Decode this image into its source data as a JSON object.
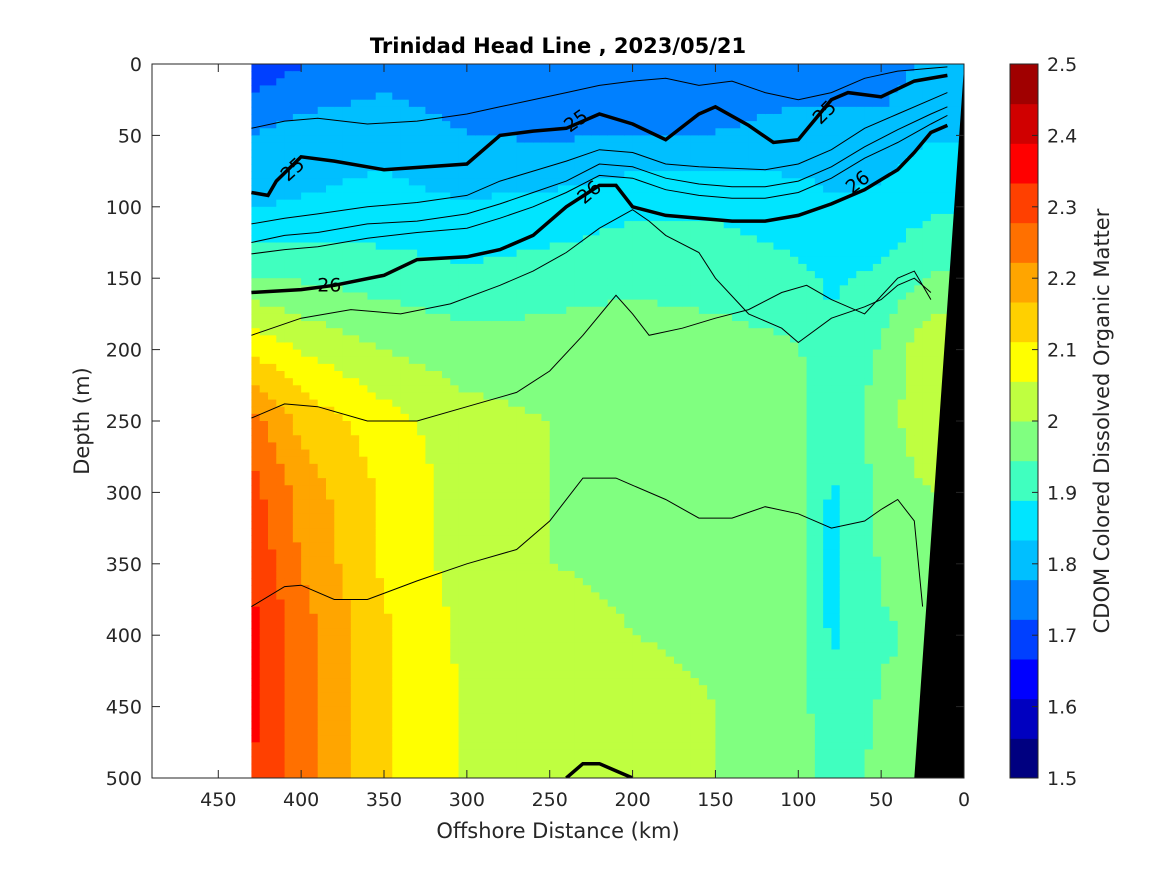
{
  "chart_data": {
    "type": "heatmap",
    "title": "Trinidad Head Line , 2023/05/21",
    "xlabel": "Offshore Distance (km)",
    "ylabel": "Depth (m)",
    "colorbar_label": "CDOM Colored Dissolved Organic Matter",
    "xlim": [
      490,
      0
    ],
    "ylim": [
      500,
      0
    ],
    "x_reversed": true,
    "y_reversed": true,
    "x_ticks": [
      "450",
      "400",
      "350",
      "300",
      "250",
      "200",
      "150",
      "100",
      "50",
      "0"
    ],
    "y_ticks": [
      "0",
      "50",
      "100",
      "150",
      "200",
      "250",
      "300",
      "350",
      "400",
      "450",
      "500"
    ],
    "colorbar": {
      "min": 1.5,
      "max": 2.5,
      "ticks": [
        "1.5",
        "1.6",
        "1.7",
        "1.8",
        "1.9",
        "2",
        "2.1",
        "2.2",
        "2.3",
        "2.4",
        "2.5"
      ],
      "colors": [
        "#000080",
        "#0000c0",
        "#0000ff",
        "#0040ff",
        "#0080ff",
        "#00bfff",
        "#00e5ff",
        "#40ffbf",
        "#80ff80",
        "#bfff40",
        "#ffff00",
        "#ffd000",
        "#ffa500",
        "#ff7000",
        "#ff4000",
        "#ff0000",
        "#d00000",
        "#a00000"
      ]
    },
    "data_x_range_km": [
      430,
      0
    ],
    "cdom_profile": {
      "description_free": true,
      "x_km": [
        430,
        400,
        350,
        300,
        250,
        200,
        150,
        100,
        80,
        50,
        20
      ],
      "depth_m": [
        0,
        50,
        100,
        150,
        200,
        250,
        300,
        350,
        400,
        450,
        500
      ],
      "values": [
        [
          1.68,
          1.72,
          1.75,
          1.72,
          1.72,
          1.72,
          1.73,
          1.75,
          1.75,
          1.74,
          1.8
        ],
        [
          1.78,
          1.8,
          1.82,
          1.78,
          1.77,
          1.78,
          1.78,
          1.8,
          1.8,
          1.8,
          1.83
        ],
        [
          1.83,
          1.84,
          1.85,
          1.84,
          1.85,
          1.88,
          1.88,
          1.86,
          1.84,
          1.85,
          1.88
        ],
        [
          1.95,
          1.94,
          1.92,
          1.9,
          1.92,
          1.93,
          1.92,
          1.9,
          1.88,
          1.9,
          1.95
        ],
        [
          2.1,
          2.05,
          2.0,
          1.97,
          1.97,
          1.98,
          1.97,
          1.95,
          1.9,
          1.95,
          2.05
        ],
        [
          2.25,
          2.15,
          2.08,
          2.02,
          2.0,
          1.98,
          1.98,
          1.96,
          1.9,
          1.97,
          2.05
        ],
        [
          2.3,
          2.2,
          2.1,
          2.03,
          2.0,
          1.98,
          1.98,
          1.96,
          1.88,
          1.96,
          2.0
        ],
        [
          2.33,
          2.22,
          2.1,
          2.03,
          2.0,
          1.99,
          1.98,
          1.96,
          1.87,
          1.95,
          1.96
        ],
        [
          2.35,
          2.25,
          2.12,
          2.04,
          2.02,
          2.0,
          1.99,
          1.96,
          1.88,
          1.94,
          1.95
        ],
        [
          2.35,
          2.25,
          2.12,
          2.05,
          2.03,
          2.02,
          2.0,
          1.97,
          1.9,
          1.95,
          1.95
        ],
        [
          2.33,
          2.25,
          2.12,
          2.05,
          2.04,
          2.04,
          2.0,
          1.97,
          1.92,
          1.96,
          1.96
        ]
      ]
    },
    "density_contours": {
      "labeled": [
        {
          "level": "25",
          "x_km": [
            430,
            420,
            415,
            400,
            380,
            350,
            300,
            280,
            260,
            240,
            220,
            200,
            180,
            160,
            150,
            130,
            115,
            100,
            80,
            70,
            50,
            30,
            10
          ],
          "depth_m": [
            90,
            92,
            82,
            65,
            68,
            74,
            70,
            50,
            47,
            45,
            35,
            42,
            53,
            35,
            30,
            43,
            55,
            53,
            25,
            20,
            23,
            12,
            8
          ]
        },
        {
          "level": "26",
          "x_km": [
            430,
            400,
            380,
            350,
            330,
            300,
            280,
            260,
            240,
            220,
            210,
            200,
            180,
            160,
            140,
            120,
            100,
            80,
            60,
            40,
            30,
            20,
            10
          ],
          "depth_m": [
            160,
            158,
            155,
            148,
            137,
            135,
            130,
            120,
            100,
            85,
            85,
            100,
            106,
            108,
            110,
            110,
            106,
            98,
            88,
            74,
            62,
            48,
            43
          ]
        },
        {
          "level": "",
          "x_km": [
            240,
            230,
            220,
            210,
            200
          ],
          "depth_m": [
            500,
            490,
            490,
            495,
            500
          ]
        }
      ],
      "thin": [
        {
          "x_km": [
            430,
            410,
            390,
            360,
            330,
            300,
            280,
            260,
            240,
            220,
            200,
            180,
            160,
            140,
            120,
            100,
            80,
            60,
            40,
            20,
            10
          ],
          "depth_m": [
            45,
            40,
            38,
            42,
            40,
            35,
            30,
            25,
            20,
            15,
            12,
            10,
            15,
            12,
            20,
            25,
            20,
            10,
            5,
            3,
            2
          ]
        },
        {
          "x_km": [
            430,
            410,
            390,
            360,
            330,
            300,
            280,
            260,
            240,
            220,
            200,
            180,
            160,
            140,
            120,
            100,
            80,
            60,
            40,
            20,
            10
          ],
          "depth_m": [
            112,
            108,
            105,
            100,
            97,
            92,
            82,
            75,
            68,
            60,
            62,
            70,
            72,
            73,
            74,
            70,
            60,
            45,
            35,
            25,
            20
          ]
        },
        {
          "x_km": [
            430,
            410,
            390,
            360,
            330,
            300,
            280,
            260,
            240,
            220,
            200,
            180,
            160,
            140,
            120,
            100,
            80,
            60,
            40,
            20,
            10
          ],
          "depth_m": [
            125,
            120,
            118,
            112,
            110,
            105,
            98,
            90,
            82,
            70,
            72,
            80,
            84,
            86,
            86,
            82,
            72,
            58,
            46,
            35,
            30
          ]
        },
        {
          "x_km": [
            430,
            410,
            390,
            360,
            330,
            300,
            280,
            260,
            240,
            220,
            200,
            180,
            160,
            140,
            120,
            100,
            80,
            60,
            40,
            20,
            10
          ],
          "depth_m": [
            133,
            130,
            128,
            122,
            118,
            115,
            108,
            100,
            90,
            78,
            80,
            88,
            92,
            94,
            94,
            90,
            80,
            66,
            55,
            42,
            36
          ]
        },
        {
          "x_km": [
            430,
            400,
            370,
            340,
            310,
            280,
            260,
            240,
            220,
            200,
            190,
            180,
            160,
            150,
            130,
            110,
            100,
            80,
            60,
            50,
            40,
            30,
            20
          ],
          "depth_m": [
            190,
            178,
            172,
            175,
            168,
            155,
            145,
            132,
            115,
            102,
            110,
            120,
            132,
            150,
            175,
            185,
            195,
            178,
            170,
            165,
            155,
            150,
            160
          ]
        },
        {
          "x_km": [
            430,
            410,
            390,
            360,
            330,
            300,
            270,
            250,
            230,
            210,
            200,
            190,
            170,
            150,
            130,
            110,
            95,
            80,
            60,
            40,
            30,
            20
          ],
          "depth_m": [
            248,
            238,
            240,
            250,
            250,
            240,
            230,
            215,
            190,
            162,
            175,
            190,
            185,
            178,
            172,
            160,
            155,
            165,
            175,
            150,
            145,
            165
          ]
        },
        {
          "x_km": [
            430,
            410,
            400,
            380,
            360,
            330,
            300,
            270,
            250,
            230,
            210,
            200,
            180,
            160,
            140,
            120,
            100,
            80,
            60,
            50,
            40,
            30,
            25
          ],
          "depth_m": [
            380,
            366,
            365,
            375,
            375,
            362,
            350,
            340,
            320,
            290,
            290,
            295,
            305,
            318,
            318,
            310,
            315,
            325,
            320,
            312,
            305,
            320,
            380
          ]
        }
      ],
      "contour_labels": [
        {
          "text": "25",
          "x_km": 405,
          "depth_m": 74,
          "rotate": -42
        },
        {
          "text": "25",
          "x_km": 234,
          "depth_m": 40,
          "rotate": -35
        },
        {
          "text": "25",
          "x_km": 84,
          "depth_m": 34,
          "rotate": -45
        },
        {
          "text": "26",
          "x_km": 383,
          "depth_m": 155,
          "rotate": 0
        },
        {
          "text": "26",
          "x_km": 226,
          "depth_m": 90,
          "rotate": -40
        },
        {
          "text": "26",
          "x_km": 64,
          "depth_m": 83,
          "rotate": -38
        }
      ]
    },
    "bathymetry_fill_color": "#000000"
  }
}
